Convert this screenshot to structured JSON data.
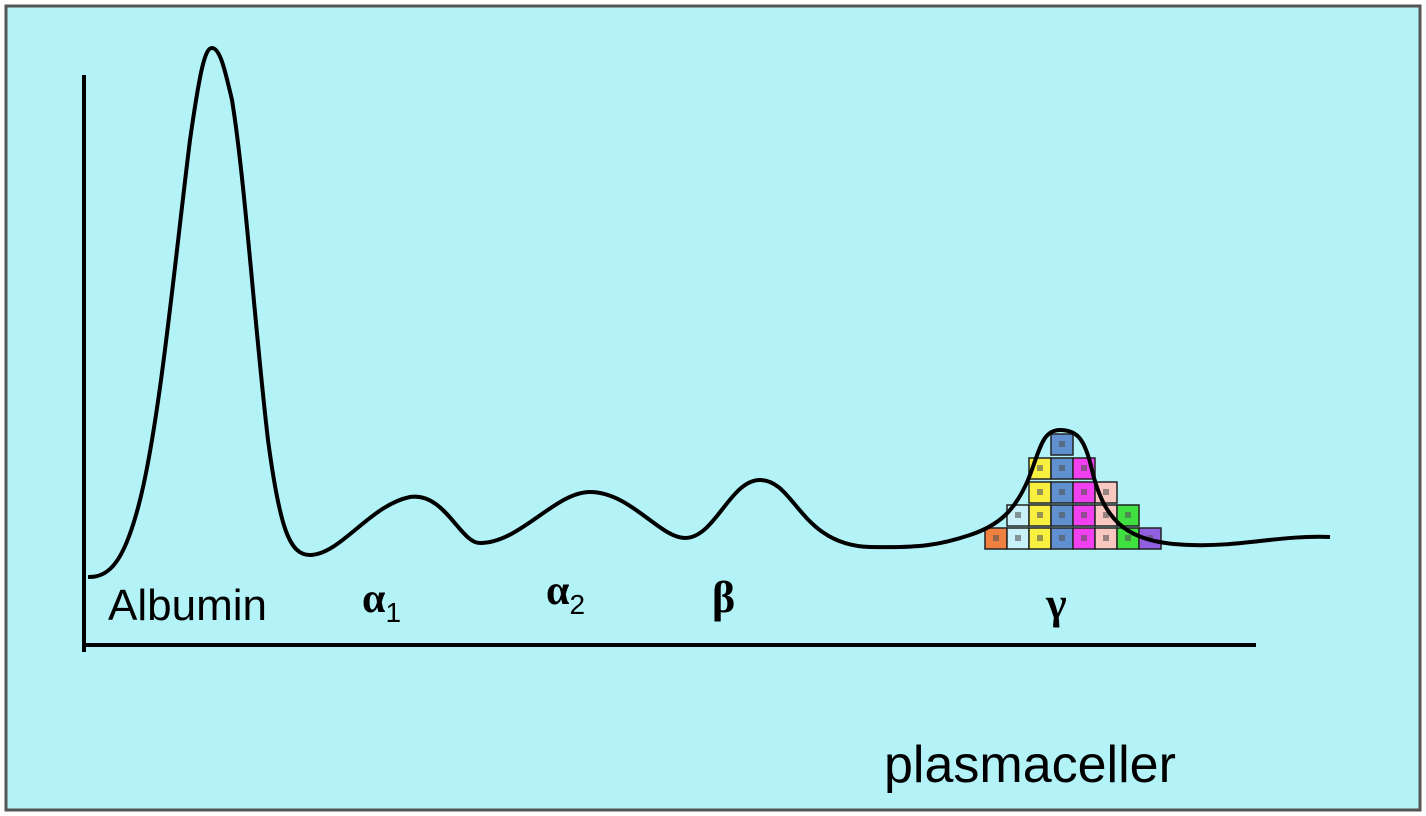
{
  "labels": [
    {
      "text": "Albumin"
    },
    {
      "text": "α",
      "sub": "1"
    },
    {
      "text": "α",
      "sub": "2"
    },
    {
      "text": "β"
    },
    {
      "text": "γ"
    }
  ],
  "caption": "plasmaceller"
}
